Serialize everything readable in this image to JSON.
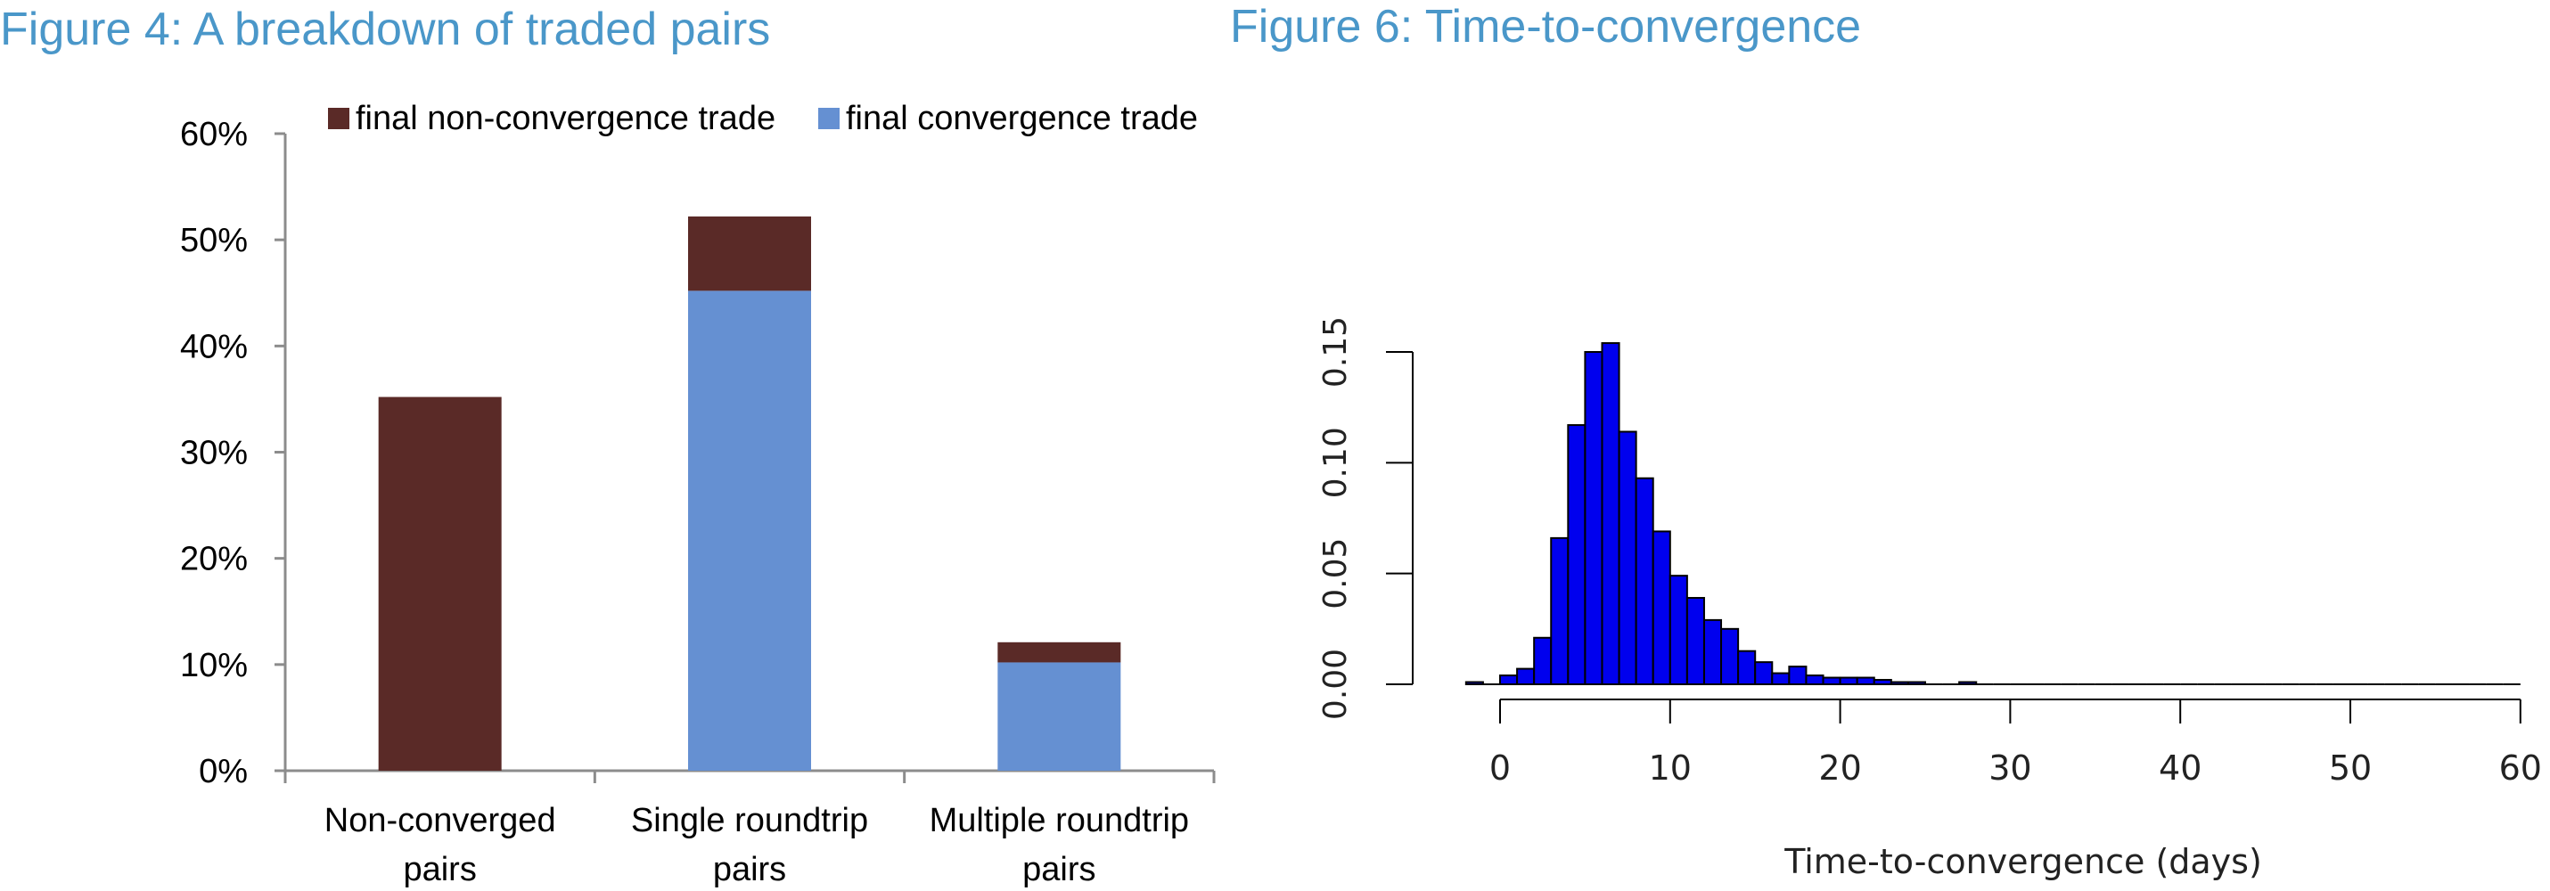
{
  "chart_data": [
    {
      "type": "bar",
      "stacked": true,
      "title": "Figure 4: A breakdown of traded pairs",
      "categories": [
        "Non-converged pairs",
        "Single roundtrip pairs",
        "Multiple roundtrip pairs"
      ],
      "category_lines": [
        [
          "Non-converged",
          "pairs"
        ],
        [
          "Single roundtrip",
          "pairs"
        ],
        [
          "Multiple roundtrip",
          "pairs"
        ]
      ],
      "series": [
        {
          "name": "final convergence trade",
          "color": "#6590d2",
          "values": [
            0,
            45.2,
            10.2
          ]
        },
        {
          "name": "final non-convergence trade",
          "color": "#5a2a27",
          "values": [
            35.2,
            7.0,
            1.9
          ]
        }
      ],
      "legend_order": [
        "final non-convergence trade",
        "final convergence trade"
      ],
      "legend_position": "top",
      "ylim": [
        0,
        60
      ],
      "yticks": [
        "0%",
        "10%",
        "20%",
        "30%",
        "40%",
        "50%",
        "60%"
      ],
      "grid": false
    },
    {
      "type": "histogram",
      "title": "Figure 6: Time-to-convergence",
      "xlabel": "Time-to-convergence (days)",
      "ylabel": "",
      "xlim": [
        -3,
        60
      ],
      "ylim": [
        0,
        0.15
      ],
      "xticks": [
        "0",
        "10",
        "20",
        "30",
        "40",
        "50",
        "60"
      ],
      "yticks": [
        "0.00",
        "0.05",
        "0.10",
        "0.15"
      ],
      "bin_width": 1,
      "bins_start": -2,
      "density": [
        0.001,
        0,
        0.004,
        0.007,
        0.021,
        0.066,
        0.117,
        0.15,
        0.154,
        0.114,
        0.093,
        0.069,
        0.049,
        0.039,
        0.029,
        0.025,
        0.015,
        0.01,
        0.005,
        0.008,
        0.004,
        0.003,
        0.003,
        0.003,
        0.002,
        0.001,
        0.001,
        0,
        0,
        0.001,
        0,
        0,
        0,
        0,
        0,
        0,
        0,
        0,
        0,
        0,
        0,
        0,
        0,
        0,
        0,
        0,
        0,
        0,
        0,
        0,
        0,
        0,
        0,
        0,
        0,
        0,
        0,
        0,
        0,
        0,
        0,
        0
      ],
      "bar_color": "#0000ee",
      "grid": false
    }
  ]
}
